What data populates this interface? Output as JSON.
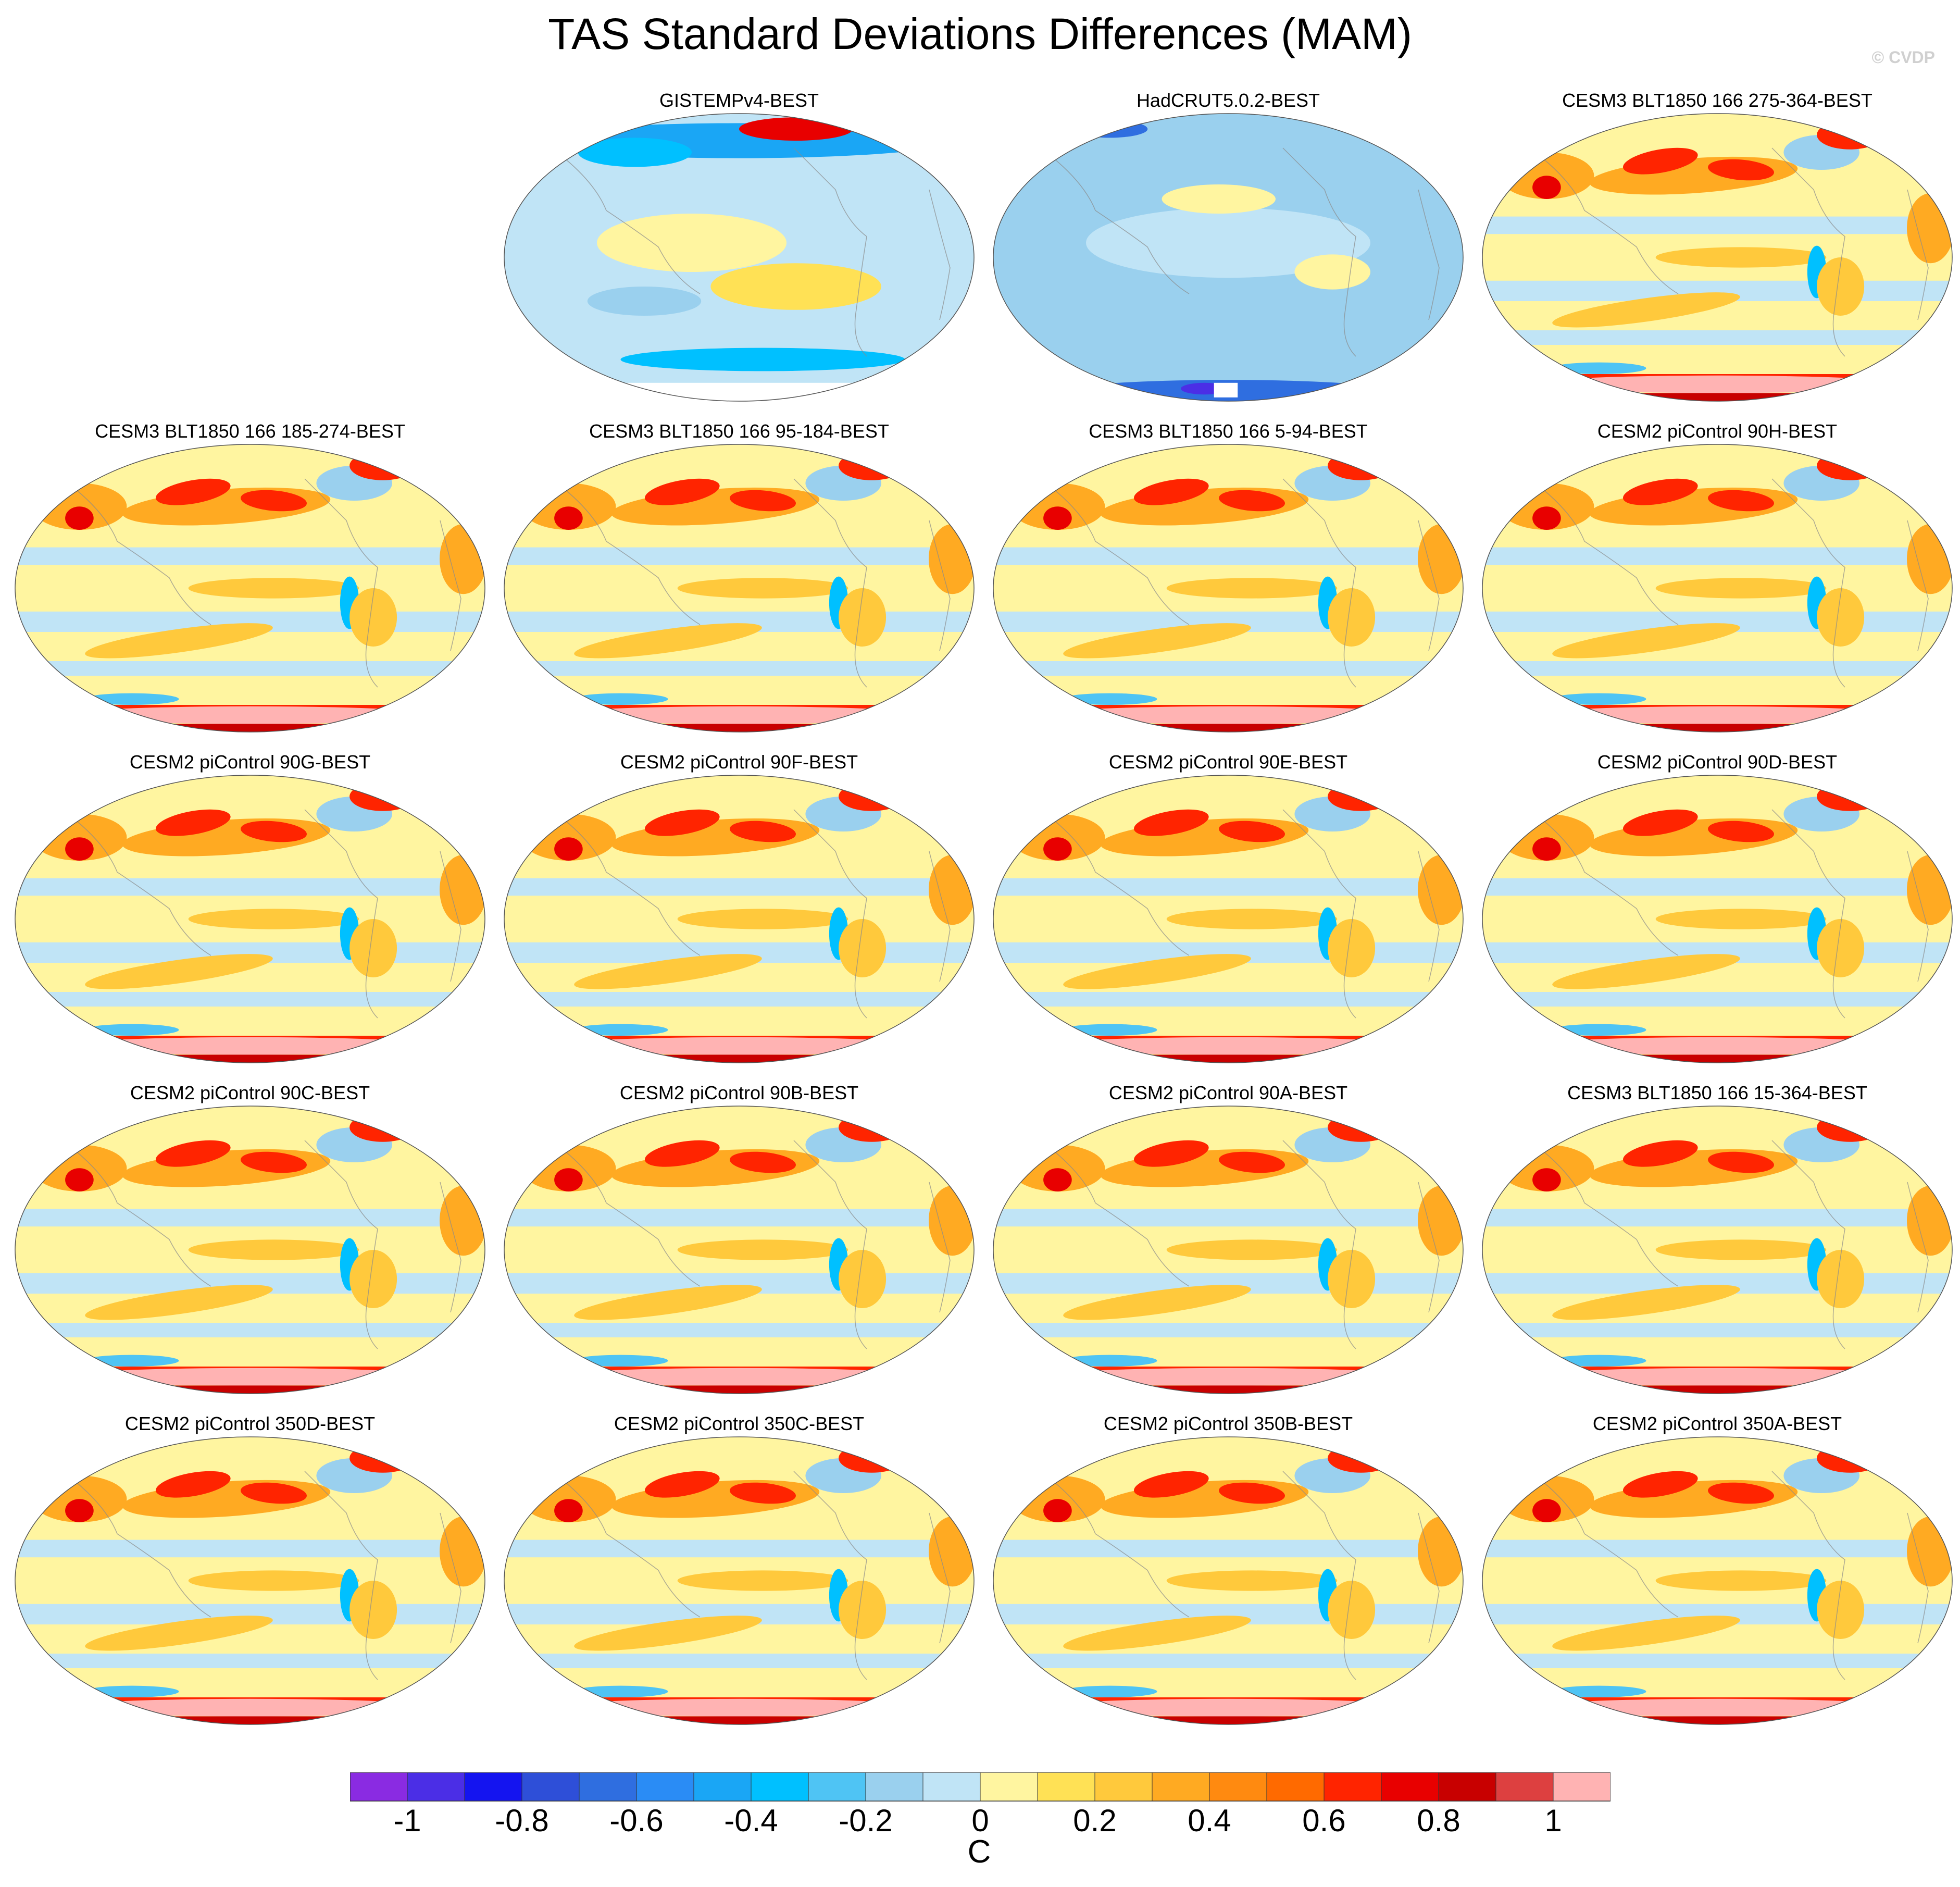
{
  "figure": {
    "title": "TAS Standard Deviations Differences (MAM)",
    "credit": "© CVDP"
  },
  "chart_data": {
    "type": "heatmap",
    "projection": "robinson-like global maps, 5 rows x 4 columns (first cell empty)",
    "panels": [
      {
        "title": "GISTEMPv4-BEST",
        "style": "obs-gistemp"
      },
      {
        "title": "HadCRUT5.0.2-BEST",
        "style": "obs-hadcrut"
      },
      {
        "title": "CESM3 BLT1850 166 275-364-BEST",
        "style": "model"
      },
      {
        "title": "CESM3 BLT1850 166 185-274-BEST",
        "style": "model"
      },
      {
        "title": "CESM3 BLT1850 166 95-184-BEST",
        "style": "model"
      },
      {
        "title": "CESM3 BLT1850 166 5-94-BEST",
        "style": "model"
      },
      {
        "title": "CESM2 piControl 90H-BEST",
        "style": "model"
      },
      {
        "title": "CESM2 piControl 90G-BEST",
        "style": "model"
      },
      {
        "title": "CESM2 piControl 90F-BEST",
        "style": "model"
      },
      {
        "title": "CESM2 piControl 90E-BEST",
        "style": "model"
      },
      {
        "title": "CESM2 piControl 90D-BEST",
        "style": "model"
      },
      {
        "title": "CESM2 piControl 90C-BEST",
        "style": "model"
      },
      {
        "title": "CESM2 piControl 90B-BEST",
        "style": "model"
      },
      {
        "title": "CESM2 piControl 90A-BEST",
        "style": "model"
      },
      {
        "title": "CESM3 BLT1850 166 15-364-BEST",
        "style": "model"
      },
      {
        "title": "CESM2 piControl 350D-BEST",
        "style": "model"
      },
      {
        "title": "CESM2 piControl 350C-BEST",
        "style": "model"
      },
      {
        "title": "CESM2 piControl 350B-BEST",
        "style": "model"
      },
      {
        "title": "CESM2 piControl 350A-BEST",
        "style": "model"
      }
    ],
    "colorbar": {
      "unit": "C",
      "range": [
        -1.1,
        1.1
      ],
      "levels": [
        -1,
        -0.9,
        -0.8,
        -0.7,
        -0.6,
        -0.5,
        -0.4,
        -0.3,
        -0.2,
        -0.1,
        0,
        0.1,
        0.2,
        0.3,
        0.4,
        0.5,
        0.6,
        0.7,
        0.8,
        0.9,
        1
      ],
      "tick_labels": [
        "-1",
        "-0.8",
        "-0.6",
        "-0.4",
        "-0.2",
        "0",
        "0.2",
        "0.4",
        "0.6",
        "0.8",
        "1"
      ],
      "colors": [
        "#8a2be2",
        "#4b2ee6",
        "#1414f0",
        "#2e4fd8",
        "#2f6ee0",
        "#2a8cf5",
        "#1aa6f5",
        "#00c0ff",
        "#4fc4f4",
        "#9ad0ee",
        "#c0e4f6",
        "#fff5a0",
        "#ffe155",
        "#ffc93c",
        "#ffaa22",
        "#ff8a10",
        "#ff6a00",
        "#ff2400",
        "#e80000",
        "#c80000",
        "#dd4040",
        "#ffb3b3"
      ]
    }
  }
}
